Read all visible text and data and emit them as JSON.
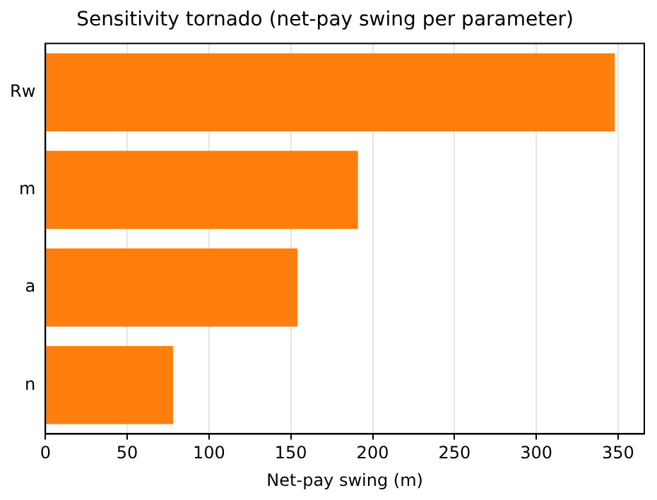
{
  "chart_data": {
    "type": "bar",
    "orientation": "horizontal",
    "title": "Sensitivity tornado (net-pay swing per parameter)",
    "xlabel": "Net-pay swing (m)",
    "categories": [
      "Rw",
      "m",
      "a",
      "n"
    ],
    "values": [
      348,
      191,
      154,
      78
    ],
    "color": "#ff7f0e",
    "xlim": [
      0,
      366
    ],
    "xticks": [
      0,
      50,
      100,
      150,
      200,
      250,
      300,
      350
    ],
    "grid": "x",
    "legend": false
  }
}
